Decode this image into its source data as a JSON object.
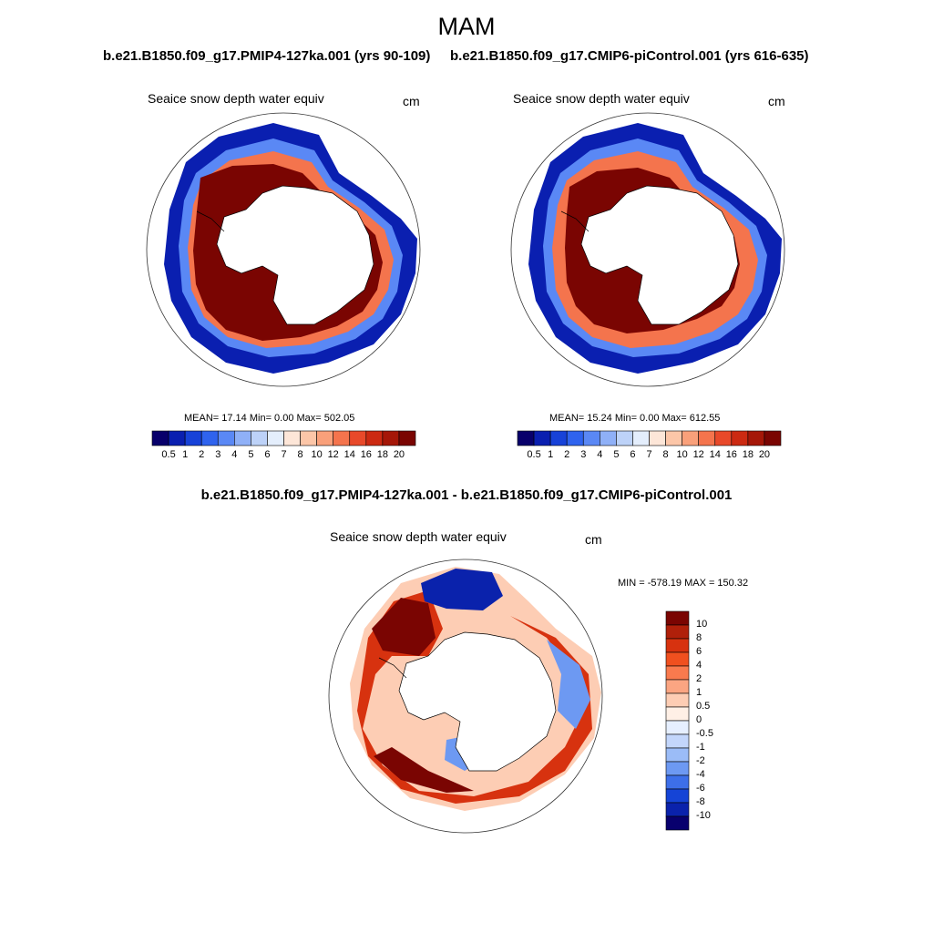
{
  "title": "MAM",
  "panels": [
    {
      "title": "b.e21.B1850.f09_g17.PMIP4-127ka.001 (yrs 90-109)",
      "variable": "Seaice snow depth water equiv",
      "units": "cm",
      "stats": "MEAN=  17.14  Min=   0.00  Max= 502.05"
    },
    {
      "title": "b.e21.B1850.f09_g17.CMIP6-piControl.001 (yrs 616-635)",
      "variable": "Seaice snow depth water equiv",
      "units": "cm",
      "stats": "MEAN=  15.24  Min=   0.00  Max= 612.55"
    }
  ],
  "difference": {
    "title": "b.e21.B1850.f09_g17.PMIP4-127ka.001 - b.e21.B1850.f09_g17.CMIP6-piControl.001",
    "variable": "Seaice snow depth water equiv",
    "units": "cm",
    "minmax": "MIN = -578.19 MAX = 150.32"
  },
  "colorbar": {
    "labels": [
      "0.5",
      "1",
      "2",
      "3",
      "4",
      "5",
      "6",
      "7",
      "8",
      "10",
      "12",
      "14",
      "16",
      "18",
      "20"
    ],
    "colors": [
      "#08006b",
      "#0a1fb0",
      "#1742d8",
      "#2f63ee",
      "#5a88f5",
      "#8fb0f7",
      "#bdd2f8",
      "#e4eefc",
      "#fde6d8",
      "#fcc6a8",
      "#f9a07a",
      "#f4744d",
      "#e8492a",
      "#cc2a12",
      "#a51708",
      "#7a0502"
    ]
  },
  "diff_colorbar": {
    "labels": [
      "10",
      "8",
      "6",
      "4",
      "2",
      "1",
      "0.5",
      "0",
      "-0.5",
      "-1",
      "-2",
      "-4",
      "-6",
      "-8",
      "-10"
    ],
    "colors": [
      "#7a0502",
      "#b0200a",
      "#d7320f",
      "#f0501f",
      "#f97a4e",
      "#fba582",
      "#fdcdb4",
      "#fff0e6",
      "#e6efff",
      "#c3d6fb",
      "#9bbcf7",
      "#6d99f2",
      "#3d6fe9",
      "#1544d6",
      "#0a22ac",
      "#08006e"
    ]
  },
  "colors": {
    "deep_red": "#7a0502",
    "mid_red": "#d7320f",
    "light_red": "#f4744d",
    "deep_blue": "#0a1fb0",
    "mid_blue": "#2f63ee",
    "light_blue": "#8fb0f7"
  }
}
